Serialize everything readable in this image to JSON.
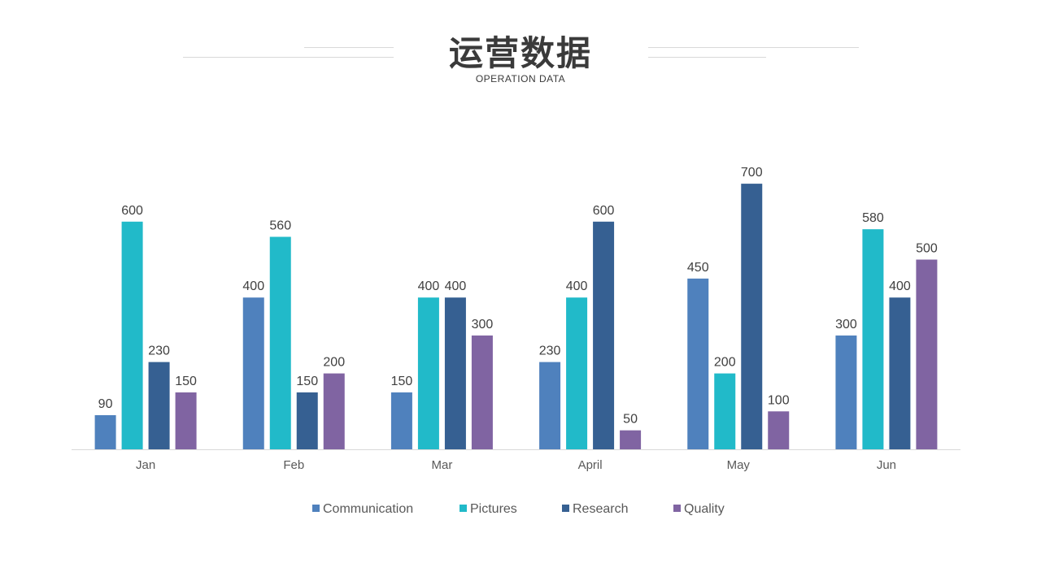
{
  "header": {
    "title": "运营数据",
    "subtitle": "OPERATION DATA"
  },
  "chart_data": {
    "type": "bar",
    "title": "运营数据",
    "subtitle": "OPERATION DATA",
    "xlabel": "",
    "ylabel": "",
    "ylim": [
      0,
      750
    ],
    "grid": false,
    "legend_position": "bottom",
    "categories": [
      "Jan",
      "Feb",
      "Mar",
      "April",
      "May",
      "Jun"
    ],
    "series": [
      {
        "name": "Communication",
        "color": "#4f81bd",
        "values": [
          90,
          400,
          150,
          230,
          450,
          300
        ]
      },
      {
        "name": "Pictures",
        "color": "#21bac9",
        "values": [
          600,
          560,
          400,
          400,
          200,
          580
        ]
      },
      {
        "name": "Research",
        "color": "#366092",
        "values": [
          230,
          150,
          400,
          600,
          700,
          400
        ]
      },
      {
        "name": "Quality",
        "color": "#8064a2",
        "values": [
          150,
          200,
          300,
          50,
          100,
          500
        ]
      }
    ]
  }
}
